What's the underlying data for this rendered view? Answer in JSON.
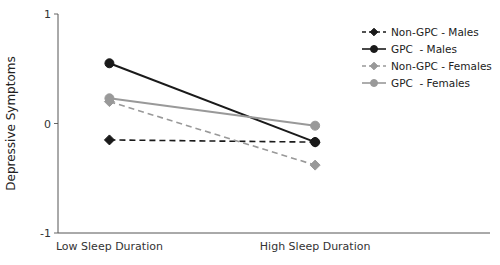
{
  "chart_data": {
    "type": "line",
    "categories": [
      "Low Sleep Duration",
      "High Sleep Duration"
    ],
    "series": [
      {
        "name": "Non-GPC - Males",
        "color": "#1a1a1a",
        "marker": "diamond",
        "line_style": "dashed",
        "values": [
          -0.15,
          -0.17
        ]
      },
      {
        "name": "GPC  - Males",
        "color": "#1a1a1a",
        "marker": "circle",
        "line_style": "solid",
        "values": [
          0.55,
          -0.17
        ]
      },
      {
        "name": "Non-GPC - Females",
        "color": "#999999",
        "marker": "diamond",
        "line_style": "dashed",
        "values": [
          0.2,
          -0.38
        ]
      },
      {
        "name": "GPC  - Females",
        "color": "#999999",
        "marker": "circle",
        "line_style": "solid",
        "values": [
          0.23,
          -0.02
        ]
      }
    ],
    "y_label": "Depressive Symptoms",
    "ylim": [
      -1.0,
      1.0
    ],
    "yticks": [
      -1,
      0,
      1
    ],
    "grid": false,
    "legend": "upper right"
  }
}
